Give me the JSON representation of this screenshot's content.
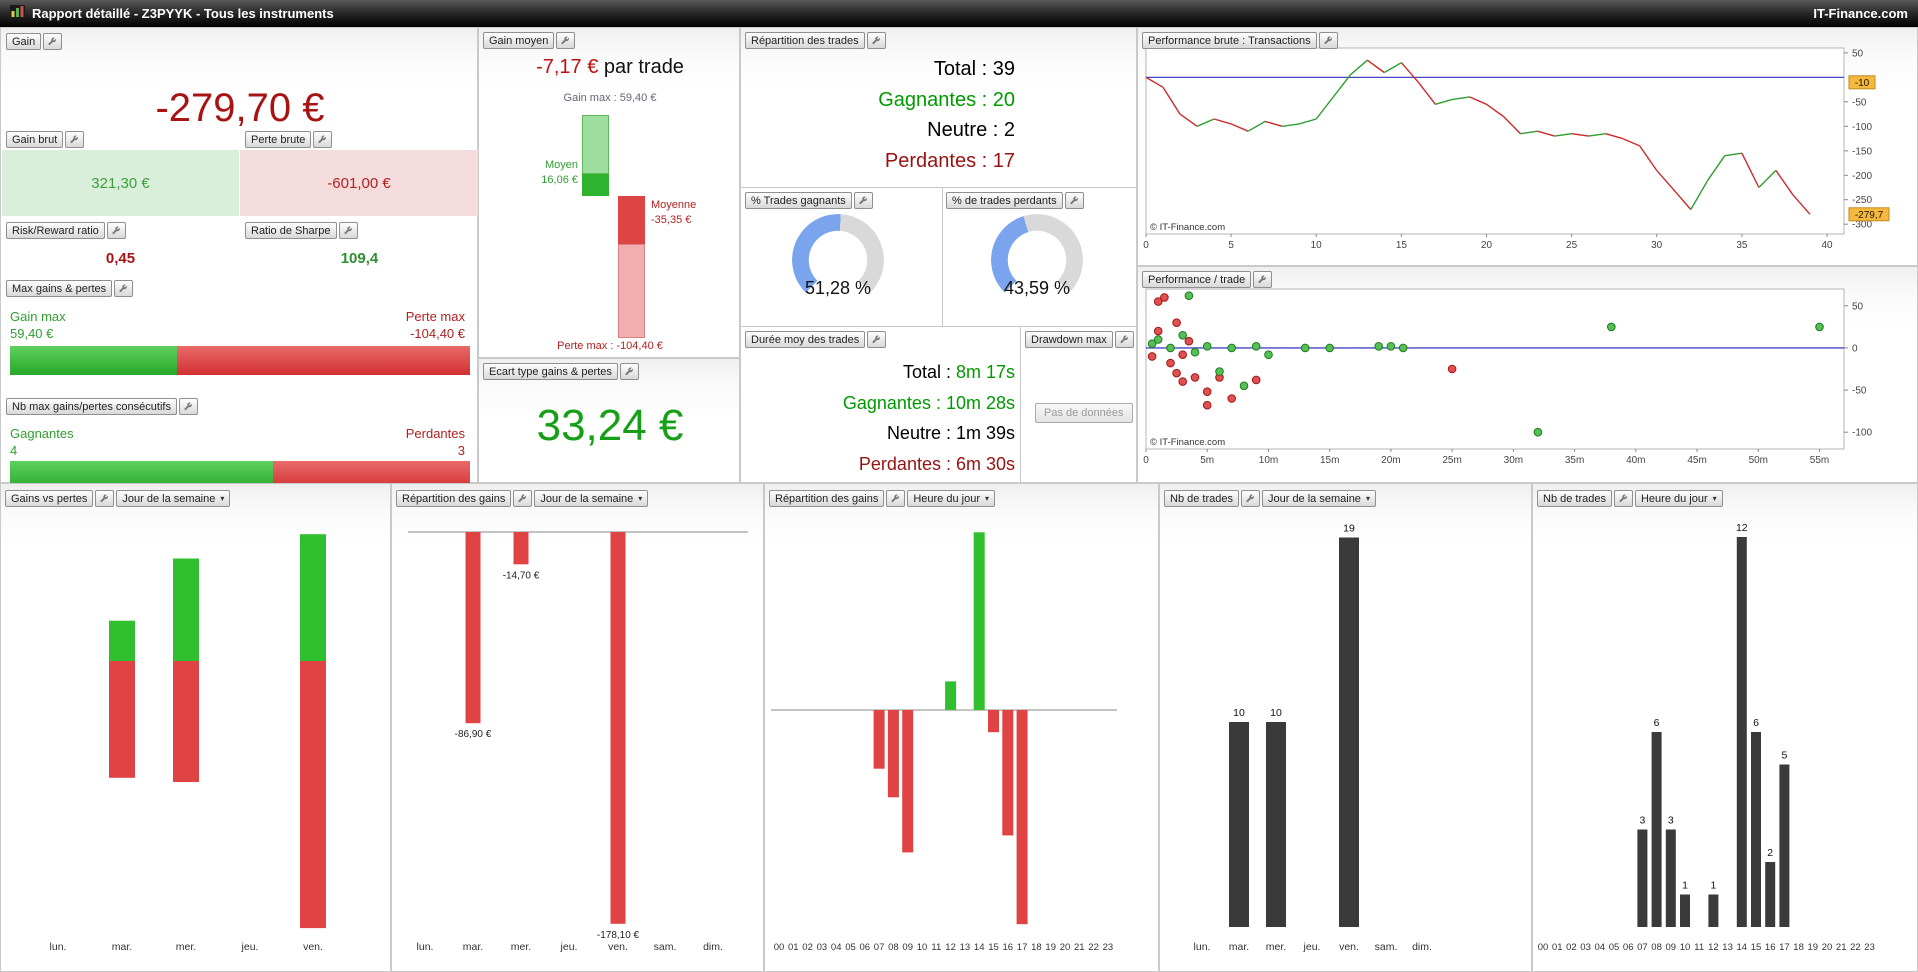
{
  "titlebar": {
    "title": "Rapport détaillé - Z3PYYK - Tous les instruments",
    "brand": "IT-Finance.com"
  },
  "icons": {
    "app": "chart-icon",
    "settings": "wrench-icon",
    "caret_glyph": "▾"
  },
  "gain": {
    "label": "Gain",
    "value": "-279,70 €",
    "gain_brut": {
      "label": "Gain brut",
      "value": "321,30 €"
    },
    "perte_brute": {
      "label": "Perte brute",
      "value": "-601,00 €"
    },
    "risk_reward": {
      "label": "Risk/Reward ratio",
      "value": "0,45"
    },
    "sharpe": {
      "label": "Ratio de Sharpe",
      "value": "109,4"
    },
    "max_gains_pertes": {
      "label": "Max gains & pertes",
      "gain_label": "Gain max",
      "gain_value": "59,40 €",
      "perte_label": "Perte max",
      "perte_value": "-104,40 €",
      "gain_pct": 36.3
    },
    "consecutifs": {
      "label": "Nb max gains/pertes consécutifs",
      "win_label": "Gagnantes",
      "win_value": "4",
      "loss_label": "Perdantes",
      "loss_value": "3",
      "win_pct": 57.1
    }
  },
  "gain_moyen": {
    "label": "Gain moyen",
    "value": "-7,17 €",
    "suffix": " par trade",
    "gain_max_label": "Gain max : 59,40 €",
    "moyen_label": "Moyen",
    "moyen_value": "16,06 €",
    "moyenne_label": "Moyenne",
    "moyenne_value": "-35,35 €",
    "perte_max_label": "Perte max : -104,40 €",
    "waterfall": {
      "gain_max": 59.4,
      "moyen": 16.06,
      "moyenne": -35.35,
      "perte_max": -104.4
    }
  },
  "ecart_type": {
    "label": "Ecart type gains & pertes",
    "value": "33,24 €"
  },
  "repartition_trades": {
    "label": "Répartition des trades",
    "rows": [
      {
        "label": "Total : ",
        "value": "39",
        "color": "#000000"
      },
      {
        "label": "Gagnantes : ",
        "value": "20",
        "color": "#009900"
      },
      {
        "label": "Neutre : ",
        "value": "2",
        "color": "#000000"
      },
      {
        "label": "Perdantes : ",
        "value": "17",
        "color": "#991111"
      }
    ]
  },
  "gauges": [
    {
      "label": "% Trades gagnants",
      "value": "51,28 %",
      "pct": 51.28
    },
    {
      "label": "% de trades perdants",
      "value": "43,59 %",
      "pct": 43.59
    }
  ],
  "duree": {
    "label": "Durée moy des trades",
    "rows": [
      {
        "label": "Total : ",
        "value": "8m 17s",
        "label_color": "#000000",
        "value_color": "#009900"
      },
      {
        "label": "Gagnantes : ",
        "value": "10m 28s",
        "label_color": "#009900",
        "value_color": "#009900"
      },
      {
        "label": "Neutre : ",
        "value": "1m 39s",
        "label_color": "#000000",
        "value_color": "#000000"
      },
      {
        "label": "Perdantes : ",
        "value": "6m 30s",
        "label_color": "#991111",
        "value_color": "#991111"
      }
    ]
  },
  "drawdown": {
    "label": "Drawdown max",
    "empty": "Pas de données"
  },
  "perf_brute": {
    "label": "Performance brute : Transactions",
    "copyright": "© IT-Finance.com",
    "tag_mid": "-10",
    "tag_last": "-279,7"
  },
  "perf_trade": {
    "label": "Performance / trade",
    "copyright": "© IT-Finance.com"
  },
  "bottom_headers": {
    "b1": {
      "label": "Gains vs pertes",
      "dropdown": "Jour de la semaine"
    },
    "b2": {
      "label": "Répartition des gains",
      "dropdown": "Jour de la semaine"
    },
    "b3": {
      "label": "Répartition des gains",
      "dropdown": "Heure du jour"
    },
    "b4": {
      "label": "Nb de trades",
      "dropdown": "Jour de la semaine"
    },
    "b5": {
      "label": "Nb de trades",
      "dropdown": "Heure du jour"
    }
  },
  "chart_data": [
    {
      "id": "equity_curve",
      "type": "line",
      "title": "Performance brute : Transactions",
      "xlabel_ticks": [
        0,
        5,
        10,
        15,
        20,
        25,
        30,
        35,
        40
      ],
      "ylabel_ticks": [
        50,
        -50,
        -100,
        -150,
        -200,
        -250,
        -300
      ],
      "xlim": [
        0,
        41
      ],
      "ylim": [
        -320,
        60
      ],
      "zero_line": 0,
      "values": [
        0,
        -20,
        -75,
        -100,
        -85,
        -95,
        -110,
        -90,
        -100,
        -95,
        -85,
        -40,
        5,
        35,
        10,
        30,
        -10,
        -55,
        -45,
        -40,
        -55,
        -80,
        -115,
        -110,
        -120,
        -115,
        -120,
        -115,
        -125,
        -140,
        -190,
        -230,
        -270,
        -210,
        -160,
        -155,
        -225,
        -190,
        -240,
        -279.7
      ]
    },
    {
      "id": "perf_per_trade",
      "type": "scatter",
      "title": "Performance / trade",
      "x_ticks": [
        "0",
        "5m",
        "10m",
        "15m",
        "20m",
        "25m",
        "30m",
        "35m",
        "40m",
        "45m",
        "50m",
        "55m"
      ],
      "y_ticks": [
        50,
        0,
        -50,
        -100
      ],
      "xlim": [
        0,
        57
      ],
      "ylim": [
        -120,
        70
      ],
      "wins": [
        [
          0.5,
          5
        ],
        [
          1,
          10
        ],
        [
          2,
          0
        ],
        [
          3,
          15
        ],
        [
          3.5,
          62
        ],
        [
          4,
          -5
        ],
        [
          5,
          2
        ],
        [
          6,
          -28
        ],
        [
          7,
          0
        ],
        [
          8,
          -45
        ],
        [
          9,
          2
        ],
        [
          10,
          -8
        ],
        [
          13,
          0
        ],
        [
          15,
          0
        ],
        [
          19,
          2
        ],
        [
          20,
          2
        ],
        [
          21,
          0
        ],
        [
          32,
          -100
        ],
        [
          38,
          25
        ],
        [
          55,
          25
        ]
      ],
      "losses": [
        [
          0.5,
          -10
        ],
        [
          1,
          55
        ],
        [
          1,
          20
        ],
        [
          1.5,
          60
        ],
        [
          2,
          -18
        ],
        [
          2.5,
          30
        ],
        [
          2.5,
          -30
        ],
        [
          3,
          -8
        ],
        [
          3,
          -40
        ],
        [
          3.5,
          8
        ],
        [
          4,
          -35
        ],
        [
          5,
          -52
        ],
        [
          5,
          -68
        ],
        [
          6,
          -35
        ],
        [
          7,
          -60
        ],
        [
          9,
          -38
        ],
        [
          25,
          -25
        ]
      ]
    },
    {
      "id": "gains_vs_pertes_jour",
      "type": "bar",
      "categories": [
        "lun.",
        "mar.",
        "mer.",
        "jeu.",
        "ven."
      ],
      "series": [
        {
          "name": "gains",
          "values": [
            0,
            48,
            122,
            0,
            151
          ]
        },
        {
          "name": "pertes",
          "values": [
            0,
            -139,
            -144,
            0,
            -318
          ]
        }
      ]
    },
    {
      "id": "repartition_gains_jour",
      "type": "bar",
      "categories": [
        "lun.",
        "mar.",
        "mer.",
        "jeu.",
        "ven.",
        "sam.",
        "dim."
      ],
      "values": [
        0,
        -86.9,
        -14.7,
        0,
        -178.1,
        0,
        0
      ],
      "labels": [
        "",
        "-86,90 €",
        "-14,70 €",
        "",
        "-178,10 €",
        "",
        ""
      ]
    },
    {
      "id": "repartition_gains_heure",
      "type": "bar",
      "categories": [
        "00",
        "01",
        "02",
        "03",
        "04",
        "05",
        "06",
        "07",
        "08",
        "09",
        "10",
        "11",
        "12",
        "13",
        "14",
        "15",
        "16",
        "17",
        "18",
        "19",
        "20",
        "21",
        "22",
        "23"
      ],
      "values": [
        0,
        0,
        0,
        0,
        0,
        0,
        0,
        -37,
        -55,
        -89.7,
        0,
        0,
        18,
        0,
        112,
        -14,
        -79,
        -135,
        0,
        0,
        0,
        0,
        0,
        0
      ]
    },
    {
      "id": "nb_trades_jour",
      "type": "bar",
      "categories": [
        "lun.",
        "mar.",
        "mer.",
        "jeu.",
        "ven.",
        "sam.",
        "dim."
      ],
      "values": [
        0,
        10,
        10,
        0,
        19,
        0,
        0
      ]
    },
    {
      "id": "nb_trades_heure",
      "type": "bar",
      "categories": [
        "00",
        "01",
        "02",
        "03",
        "04",
        "05",
        "06",
        "07",
        "08",
        "09",
        "10",
        "11",
        "12",
        "13",
        "14",
        "15",
        "16",
        "17",
        "18",
        "19",
        "20",
        "21",
        "22",
        "23"
      ],
      "values": [
        0,
        0,
        0,
        0,
        0,
        0,
        0,
        3,
        6,
        3,
        1,
        0,
        1,
        0,
        12,
        6,
        2,
        5,
        0,
        0,
        0,
        0,
        0,
        0
      ]
    }
  ]
}
